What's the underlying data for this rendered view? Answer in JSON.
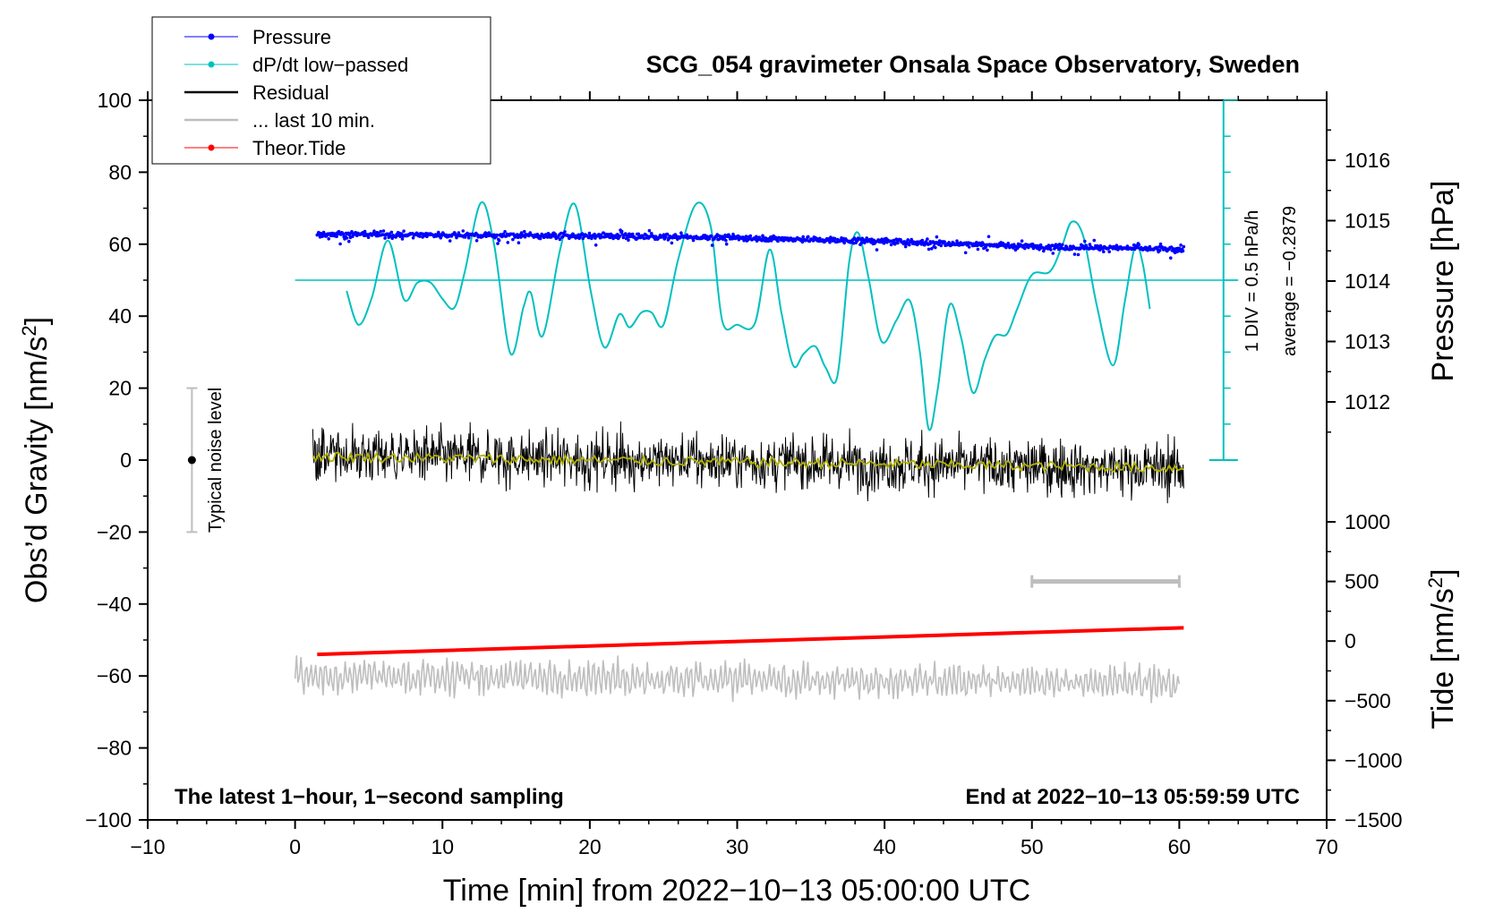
{
  "chart_data": {
    "type": "line",
    "title": "SCG_054 gravimeter Onsala Space Observatory, Sweden",
    "xlabel": "Time [min] from 2022−10−13 05:00:00 UTC",
    "ylabel": "Obs’d Gravity [nm/s²]",
    "ylabel_main": "Obs’d Gravity [nm/s",
    "ylabel_sup": "2",
    "ylabel_close": "]",
    "xlim": [
      -10,
      70
    ],
    "ylim": [
      -100,
      100
    ],
    "x_ticks": [
      "−10",
      "0",
      "10",
      "20",
      "30",
      "40",
      "50",
      "60",
      "70"
    ],
    "x_tick_values": [
      -10,
      0,
      10,
      20,
      30,
      40,
      50,
      60,
      70
    ],
    "y_ticks": [
      "100",
      "80",
      "60",
      "40",
      "20",
      "0",
      "−20",
      "−40",
      "−60",
      "−80",
      "−100"
    ],
    "y_tick_values": [
      100,
      80,
      60,
      40,
      20,
      0,
      -20,
      -40,
      -60,
      -80,
      -100
    ],
    "pressure_axis": {
      "label": "Pressure [hPa]",
      "ticks": [
        "1016",
        "1015",
        "1014",
        "1013",
        "1012"
      ],
      "tick_values": [
        1016,
        1015,
        1014,
        1013,
        1012
      ],
      "range": [
        1011,
        1017
      ]
    },
    "tide_axis": {
      "label_main": "Tide [nm/s",
      "label_sup": "2",
      "label_close": "]",
      "ticks": [
        "1000",
        "500",
        "0",
        "−500",
        "−1000",
        "−1500"
      ],
      "tick_values": [
        1000,
        500,
        0,
        -500,
        -1000,
        -1500
      ],
      "range": [
        -1500,
        1000
      ]
    },
    "dpdt_scale": {
      "div_label": "1 DIV = 0.5 hPa/h",
      "average_label": "average = −0.2879",
      "zero_level_gravity": 50,
      "baseline_gravity": 0,
      "top_gravity": 100
    },
    "legend": [
      {
        "label": "Pressure",
        "color": "#0000ff",
        "marker": "dot"
      },
      {
        "label": "dP/dt low−passed",
        "color": "#00c0c0",
        "marker": "dot"
      },
      {
        "label": "Residual",
        "color": "#000000",
        "marker": "none"
      },
      {
        "label": "... last 10 min.",
        "color": "#bebebe",
        "marker": "none"
      },
      {
        "label": "Theor.Tide",
        "color": "#ff0000",
        "marker": "dot"
      }
    ],
    "series": [
      {
        "name": "Pressure",
        "color": "#0000ff",
        "x": [
          1.5,
          10,
          20,
          30,
          40,
          50,
          60.3
        ],
        "y": [
          62.8,
          62.6,
          62.3,
          61.8,
          60.8,
          59.4,
          58.5
        ]
      },
      {
        "name": "dP/dt low−passed",
        "color": "#00c0c0",
        "x": [
          3.5,
          4.3,
          5.2,
          6.3,
          7.4,
          8.3,
          9.2,
          10.0,
          10.8,
          11.5,
          12.6,
          13.5,
          14.6,
          15.5,
          16.0,
          16.8,
          18.0,
          19.0,
          20.1,
          21.0,
          22.0,
          22.7,
          23.5,
          24.2,
          25.0,
          26.0,
          27.2,
          28.2,
          29.0,
          30.0,
          31.2,
          32.2,
          33.0,
          33.8,
          34.5,
          35.3,
          36.0,
          36.8,
          37.6,
          38.2,
          38.9,
          39.8,
          40.8,
          41.7,
          42.4,
          43.0,
          43.6,
          44.4,
          45.2,
          46.0,
          46.8,
          47.5,
          48.3,
          49.0,
          50.0,
          51.2,
          52.0,
          52.7,
          53.5,
          54.4,
          55.5,
          56.3,
          57.0,
          57.5,
          58.0
        ],
        "y": [
          47,
          37.6,
          45,
          61,
          44.6,
          49.3,
          49.3,
          44.8,
          42.3,
          52,
          71.5,
          60,
          29.7,
          42.5,
          46.5,
          34.5,
          58.8,
          71,
          46.2,
          31.3,
          40.5,
          36.9,
          41,
          41,
          37.6,
          55.8,
          71.1,
          65,
          38.5,
          37.6,
          38,
          58.5,
          41,
          26.3,
          29.5,
          31.6,
          25.7,
          23.3,
          55,
          63.2,
          51,
          33,
          38.8,
          44.4,
          30,
          8.6,
          19.5,
          43,
          34,
          18.7,
          28,
          34.5,
          35,
          42,
          51.5,
          52.3,
          59,
          66.2,
          62,
          43,
          26.3,
          44,
          59.5,
          55,
          42
        ]
      },
      {
        "name": "Residual",
        "color": "#000000",
        "x": [
          1.2,
          60.3
        ],
        "y": [
          1.5,
          -2.5
        ],
        "noise_amplitude": 6
      },
      {
        "name": "Residual smoothed",
        "color": "#b0b000",
        "x": [
          1.2,
          60.3
        ],
        "y": [
          1.0,
          -2.2
        ]
      },
      {
        "name": "Theor.Tide",
        "color": "#ff0000",
        "x": [
          1.5,
          60.3
        ],
        "y": [
          -54,
          -46.6
        ]
      },
      {
        "name": "... last 10 min.",
        "color": "#bebebe",
        "x": [
          0,
          60
        ],
        "y": [
          -60,
          -62
        ],
        "oscillation_amplitude": 4
      }
    ],
    "typical_noise": {
      "label": "Typical noise level",
      "x": -7,
      "center": 0,
      "range": [
        -20,
        20
      ]
    },
    "last_10min_bar": {
      "x_range": [
        50,
        60
      ],
      "tide_value": 500
    },
    "annotations": {
      "bottom_left": "The latest 1−hour, 1−second sampling",
      "bottom_right": "End at 2022−10−13 05:59:59 UTC"
    }
  }
}
